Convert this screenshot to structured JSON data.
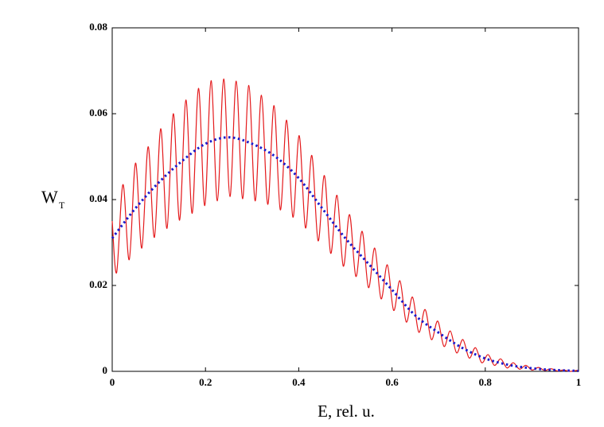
{
  "chart_data": {
    "type": "line",
    "xlabel": "E, rel. u.",
    "ylabel": "W",
    "ylabel_sub": "T",
    "xlim": [
      0,
      1
    ],
    "ylim": [
      0,
      0.08
    ],
    "xticks": [
      0,
      0.2,
      0.4,
      0.6,
      0.8,
      1
    ],
    "yticks": [
      0,
      0.02,
      0.04,
      0.06,
      0.08
    ],
    "grid": false,
    "series": [
      {
        "color": "#e41a1c",
        "style": "solid",
        "x": [
          0,
          0.0095,
          0.023,
          0.0365,
          0.05,
          0.0635,
          0.077,
          0.0905,
          0.104,
          0.1175,
          0.131,
          0.1445,
          0.158,
          0.1715,
          0.185,
          0.1985,
          0.212,
          0.2255,
          0.239,
          0.2525,
          0.266,
          0.2795,
          0.293,
          0.3065,
          0.32,
          0.3335,
          0.347,
          0.3605,
          0.374,
          0.3875,
          0.401,
          0.4145,
          0.428,
          0.4415,
          0.455,
          0.4685,
          0.482,
          0.4955,
          0.509,
          0.5225,
          0.536,
          0.5495,
          0.563,
          0.5765,
          0.59,
          0.6035,
          0.617,
          0.6305,
          0.644,
          0.6575,
          0.671,
          0.6845,
          0.698,
          0.7115,
          0.725,
          0.7385,
          0.752,
          0.7655,
          0.779,
          0.7925,
          0.806,
          0.8195,
          0.833,
          0.8465,
          0.86,
          0.8735,
          0.887,
          0.9005,
          0.914,
          0.9275,
          0.941,
          0.9545,
          0.968,
          0.9815,
          0.995,
          1
        ],
        "values": [
          0.035,
          0.023,
          0.0435,
          0.026,
          0.0485,
          0.0287,
          0.0523,
          0.0312,
          0.0565,
          0.0333,
          0.06,
          0.0352,
          0.0632,
          0.0368,
          0.0659,
          0.0386,
          0.0677,
          0.0397,
          0.0681,
          0.0407,
          0.0676,
          0.0402,
          0.0666,
          0.0397,
          0.0643,
          0.0389,
          0.0619,
          0.0376,
          0.0585,
          0.0359,
          0.0549,
          0.0334,
          0.0503,
          0.0304,
          0.0456,
          0.0275,
          0.041,
          0.0245,
          0.0365,
          0.0221,
          0.0326,
          0.0195,
          0.0287,
          0.0169,
          0.0248,
          0.0142,
          0.0211,
          0.0115,
          0.0173,
          0.0091,
          0.0144,
          0.0074,
          0.0117,
          0.0058,
          0.0094,
          0.0043,
          0.0074,
          0.0031,
          0.0055,
          0.002,
          0.0039,
          0.0014,
          0.0029,
          0.0008,
          0.002,
          0.0005,
          0.0014,
          0.0003,
          0.0009,
          0.0002,
          0.0006,
          0.0001,
          0.0003,
          0,
          0.0002,
          0.0001
        ]
      },
      {
        "color": "#1a1acc",
        "style": "dotted",
        "x": [
          0,
          0.05,
          0.1,
          0.15,
          0.2,
          0.25,
          0.3,
          0.35,
          0.4,
          0.45,
          0.5,
          0.55,
          0.6,
          0.65,
          0.7,
          0.75,
          0.8,
          0.85,
          0.9,
          0.95,
          1
        ],
        "values": [
          0.031,
          0.038,
          0.044,
          0.049,
          0.053,
          0.0545,
          0.053,
          0.05,
          0.045,
          0.038,
          0.031,
          0.025,
          0.019,
          0.013,
          0.009,
          0.0055,
          0.003,
          0.0015,
          0.0007,
          0.0003,
          0.0001
        ]
      }
    ]
  }
}
